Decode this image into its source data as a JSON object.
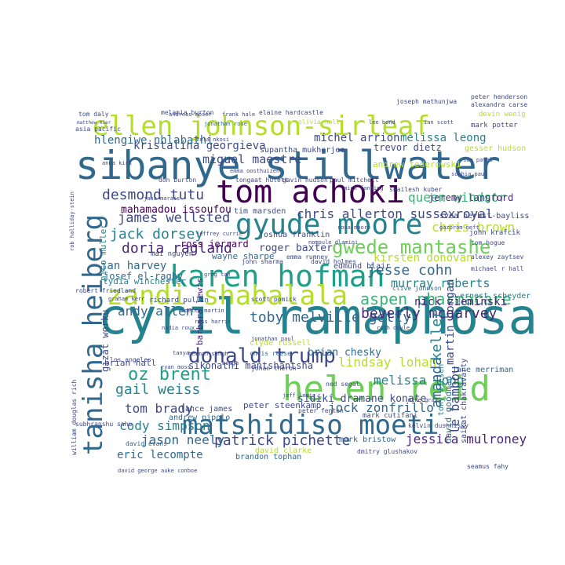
{
  "colors": {
    "background": "#ffffff",
    "palette": [
      "#440154",
      "#482878",
      "#3e4989",
      "#31688e",
      "#26828e",
      "#1f9e89",
      "#35b779",
      "#6ece58",
      "#b5de2b",
      "#fde725"
    ]
  },
  "words": [
    {
      "text": "cyril ramaphosa",
      "color": "#26828e"
    },
    {
      "text": "sibanye stillwater",
      "color": "#31688e"
    },
    {
      "text": "helen reid",
      "color": "#6ece58"
    },
    {
      "text": "ellen johnson-sirleaf",
      "color": "#b5de2b"
    },
    {
      "text": "matshidiso moeti",
      "color": "#31688e"
    },
    {
      "text": "tom achoki",
      "color": "#440154"
    },
    {
      "text": "gyude moore",
      "color": "#26828e"
    },
    {
      "text": "karen hofman",
      "color": "#1f9e89"
    },
    {
      "text": "zandi shabalala",
      "color": "#b5de2b"
    },
    {
      "text": "tanisha heiberg",
      "color": "#31688e"
    },
    {
      "text": "donald trump",
      "color": "#3e4989"
    },
    {
      "text": "gwede mantashe",
      "color": "#6ece58"
    },
    {
      "text": "aspen pharmacare",
      "color": "#35b779"
    },
    {
      "text": "toby melville getty",
      "color": "#31688e"
    },
    {
      "text": "beverly mcgarvey",
      "color": "#482878"
    },
    {
      "text": "oz brent",
      "color": "#1f9e89"
    },
    {
      "text": "gail weiss",
      "color": "#26828e"
    },
    {
      "text": "jesse cohn",
      "color": "#31688e"
    },
    {
      "text": "patrick pichette",
      "color": "#3e4989"
    },
    {
      "text": "jessica mulroney",
      "color": "#482878"
    },
    {
      "text": "doria ragland",
      "color": "#482878"
    },
    {
      "text": "desmond tutu",
      "color": "#3e4989"
    },
    {
      "text": "jack dorsey",
      "color": "#26828e"
    },
    {
      "text": "james wellsted",
      "color": "#3e4989"
    },
    {
      "text": "queen windsor",
      "color": "#35b779"
    },
    {
      "text": "chris allerton sussexroyal",
      "color": "#3e4989"
    },
    {
      "text": "kristalina georgieva",
      "color": "#3e4989"
    },
    {
      "text": "melissa leong",
      "color": "#26828e"
    },
    {
      "text": "hlengiwe nhlabathi",
      "color": "#31688e"
    },
    {
      "text": "miguel maestre",
      "color": "#3e4989"
    },
    {
      "text": "michel arrion",
      "color": "#3e4989"
    },
    {
      "text": "mahamadou issoufou",
      "color": "#440154"
    },
    {
      "text": "roger baxter",
      "color": "#3e4989"
    },
    {
      "text": "kirsten donovan",
      "color": "#b5de2b"
    },
    {
      "text": "murray roberts",
      "color": "#26828e"
    },
    {
      "text": "chris brown",
      "color": "#b5de2b"
    },
    {
      "text": "jan harvey",
      "color": "#31688e"
    },
    {
      "text": "andy allen",
      "color": "#31688e"
    },
    {
      "text": "tom brady",
      "color": "#3e4989"
    },
    {
      "text": "cody simpson",
      "color": "#26828e"
    },
    {
      "text": "jason neely",
      "color": "#31688e"
    },
    {
      "text": "eric lecompte",
      "color": "#31688e"
    },
    {
      "text": "lindsay lohan",
      "color": "#b5de2b"
    },
    {
      "text": "melissa long",
      "color": "#26828e"
    },
    {
      "text": "jock zonfrillo",
      "color": "#31688e"
    },
    {
      "text": "sidiki dramane konate",
      "color": "#3e4989"
    },
    {
      "text": "brian chesky",
      "color": "#31688e"
    },
    {
      "text": "sikonathi mantshantsha",
      "color": "#3e4989"
    },
    {
      "text": "amanda",
      "color": "#31688e"
    },
    {
      "text": "keller",
      "color": "#26828e"
    },
    {
      "text": "le bambou",
      "color": "#3e4989"
    },
    {
      "text": "martin horgan",
      "color": "#3e4989"
    },
    {
      "text": "nick zieminski",
      "color": "#482878"
    },
    {
      "text": "jeremy langford",
      "color": "#482878"
    },
    {
      "text": "trevor dietz",
      "color": "#3e4989"
    },
    {
      "text": "andrew tederowski",
      "color": "#b5de2b"
    },
    {
      "text": "ross jerrard",
      "color": "#440154"
    },
    {
      "text": "josef el-raghy",
      "color": "#31688e"
    },
    {
      "text": "nico muller",
      "color": "#26828e"
    },
    {
      "text": "lydia winchester",
      "color": "#26828e"
    },
    {
      "text": "wayne sharpe",
      "color": "#31688e"
    },
    {
      "text": "tim marsden",
      "color": "#3e4989"
    },
    {
      "text": "joshua franklin",
      "color": "#3e4989"
    },
    {
      "text": "peter steenkamp",
      "color": "#3e4989"
    },
    {
      "text": "brandon tophan",
      "color": "#31688e"
    },
    {
      "text": "mark bristow",
      "color": "#31688e"
    },
    {
      "text": "edmund blair",
      "color": "#3e4989"
    },
    {
      "text": "jane merriman",
      "color": "#31688e"
    },
    {
      "text": "supantha mukherjee",
      "color": "#3e4989"
    },
    {
      "text": "melania burton",
      "color": "#3e4989"
    },
    {
      "text": "elaine hardcastle",
      "color": "#3e4989"
    },
    {
      "text": "jonathan rose",
      "color": "#31688e"
    },
    {
      "text": "john krafcik",
      "color": "#3e4989"
    },
    {
      "text": "gavin hudson",
      "color": "#3e4989"
    },
    {
      "text": "andrew pipolo",
      "color": "#31688e"
    },
    {
      "text": "lance james",
      "color": "#3e4989"
    },
    {
      "text": "david evans",
      "color": "#31688e"
    },
    {
      "text": "chris reese",
      "color": "#31688e"
    },
    {
      "text": "scott pomick",
      "color": "#3e4989"
    },
    {
      "text": "barbara lewis",
      "color": "#482878"
    },
    {
      "text": "richard pullin",
      "color": "#3e4989"
    },
    {
      "text": "emma rumney",
      "color": "#3e4989"
    },
    {
      "text": "gizat worku",
      "color": "#3e4989"
    },
    {
      "text": "tony wiesen",
      "color": "#26828e"
    },
    {
      "text": "ned segal",
      "color": "#3e4989"
    },
    {
      "text": "mark potter",
      "color": "#3e4989"
    },
    {
      "text": "tom daly",
      "color": "#3e4989"
    },
    {
      "text": "peter henderson",
      "color": "#3e4989"
    },
    {
      "text": "joseph mathunjwa",
      "color": "#3e4989"
    },
    {
      "text": "devin wenig",
      "color": "#b5de2b"
    },
    {
      "text": "tom hogue",
      "color": "#3e4989"
    },
    {
      "text": "alexey zaytsev",
      "color": "#3e4989"
    },
    {
      "text": "michael r hall",
      "color": "#3e4989"
    },
    {
      "text": "clive johnson",
      "color": "#31688e"
    },
    {
      "text": "ernest scheyder",
      "color": "#26828e"
    },
    {
      "text": "david holmes",
      "color": "#3e4989"
    },
    {
      "text": "john sharma",
      "color": "#3e4989"
    },
    {
      "text": "shailesh kuber",
      "color": "#3e4989"
    },
    {
      "text": "mick fanning",
      "color": "#3e4989"
    },
    {
      "text": "tongaat hulett",
      "color": "#3e4989"
    },
    {
      "text": "paul mitchell",
      "color": "#3e4989"
    },
    {
      "text": "emma oosthuizen",
      "color": "#3e4989"
    },
    {
      "text": "don burton",
      "color": "#3e4989"
    },
    {
      "text": "jeffrey currie",
      "color": "#3e4989"
    },
    {
      "text": "mai nguyen",
      "color": "#3e4989"
    },
    {
      "text": "gazprom neft",
      "color": "#3e4989"
    },
    {
      "text": "svea herbst-bayliss",
      "color": "#3e4989"
    },
    {
      "text": "herman singh",
      "color": "#3e4989"
    },
    {
      "text": "johan theron",
      "color": "#3e4989"
    },
    {
      "text": "clyde russell",
      "color": "#b5de2b"
    },
    {
      "text": "jonathan paul",
      "color": "#3e4989"
    },
    {
      "text": "william douglas rich",
      "color": "#3e4989"
    },
    {
      "text": "subhranshu sahu",
      "color": "#3e4989"
    },
    {
      "text": "rob halliday-stein",
      "color": "#3e4989"
    },
    {
      "text": "asia pacific",
      "color": "#3e4989"
    },
    {
      "text": "matthew kier",
      "color": "#3e4989"
    },
    {
      "text": "robert friedland",
      "color": "#3e4989"
    },
    {
      "text": "david goodman",
      "color": "#31688e"
    },
    {
      "text": "saikat chakravarty",
      "color": "#3e4989"
    },
    {
      "text": "seamus fahy",
      "color": "#3e4989"
    },
    {
      "text": "alexandra carse",
      "color": "#3e4989"
    },
    {
      "text": "jana marais",
      "color": "#3e4989"
    },
    {
      "text": "mark cutifani",
      "color": "#3e4989"
    },
    {
      "text": "kelvin dushnisky",
      "color": "#3e4989"
    },
    {
      "text": "dmitry glushakov",
      "color": "#3e4989"
    },
    {
      "text": "david clarke",
      "color": "#b5de2b"
    },
    {
      "text": "peter fenton",
      "color": "#3e4989"
    },
    {
      "text": "graham kerr",
      "color": "#3e4989"
    },
    {
      "text": "david george",
      "color": "#3e4989"
    },
    {
      "text": "auke conboe",
      "color": "#3e4989"
    },
    {
      "text": "gesser hudson",
      "color": "#b5de2b"
    },
    {
      "text": "sophia paul",
      "color": "#3e4989"
    },
    {
      "text": "los angeles",
      "color": "#3e4989"
    },
    {
      "text": "brian hall",
      "color": "#3e4989"
    },
    {
      "text": "tanya",
      "color": "#3e4989"
    },
    {
      "text": "bonga",
      "color": "#3e4989"
    },
    {
      "text": "ryan moss",
      "color": "#3e4989"
    },
    {
      "text": "peter martin",
      "color": "#3e4989"
    },
    {
      "text": "andreas moser",
      "color": "#3e4989"
    },
    {
      "text": "ross harris",
      "color": "#3e4989"
    },
    {
      "text": "nompule dlamini",
      "color": "#3e4989"
    },
    {
      "text": "jeff lewis",
      "color": "#3e4989"
    },
    {
      "text": "olivia hall",
      "color": "#b5de2b"
    },
    {
      "text": "mike gray",
      "color": "#3e4989"
    },
    {
      "text": "rosa moore",
      "color": "#3e4989"
    },
    {
      "text": "frank hale",
      "color": "#3e4989"
    },
    {
      "text": "zola nkosi",
      "color": "#3e4989"
    },
    {
      "text": "lee bond",
      "color": "#3e4989"
    },
    {
      "text": "ian scott",
      "color": "#3e4989"
    },
    {
      "text": "anna kirk",
      "color": "#3e4989"
    },
    {
      "text": "sam patel",
      "color": "#3e4989"
    },
    {
      "text": "ruth doyle",
      "color": "#3e4989"
    },
    {
      "text": "greg tan",
      "color": "#3e4989"
    },
    {
      "text": "nadia roux",
      "color": "#3e4989"
    }
  ]
}
